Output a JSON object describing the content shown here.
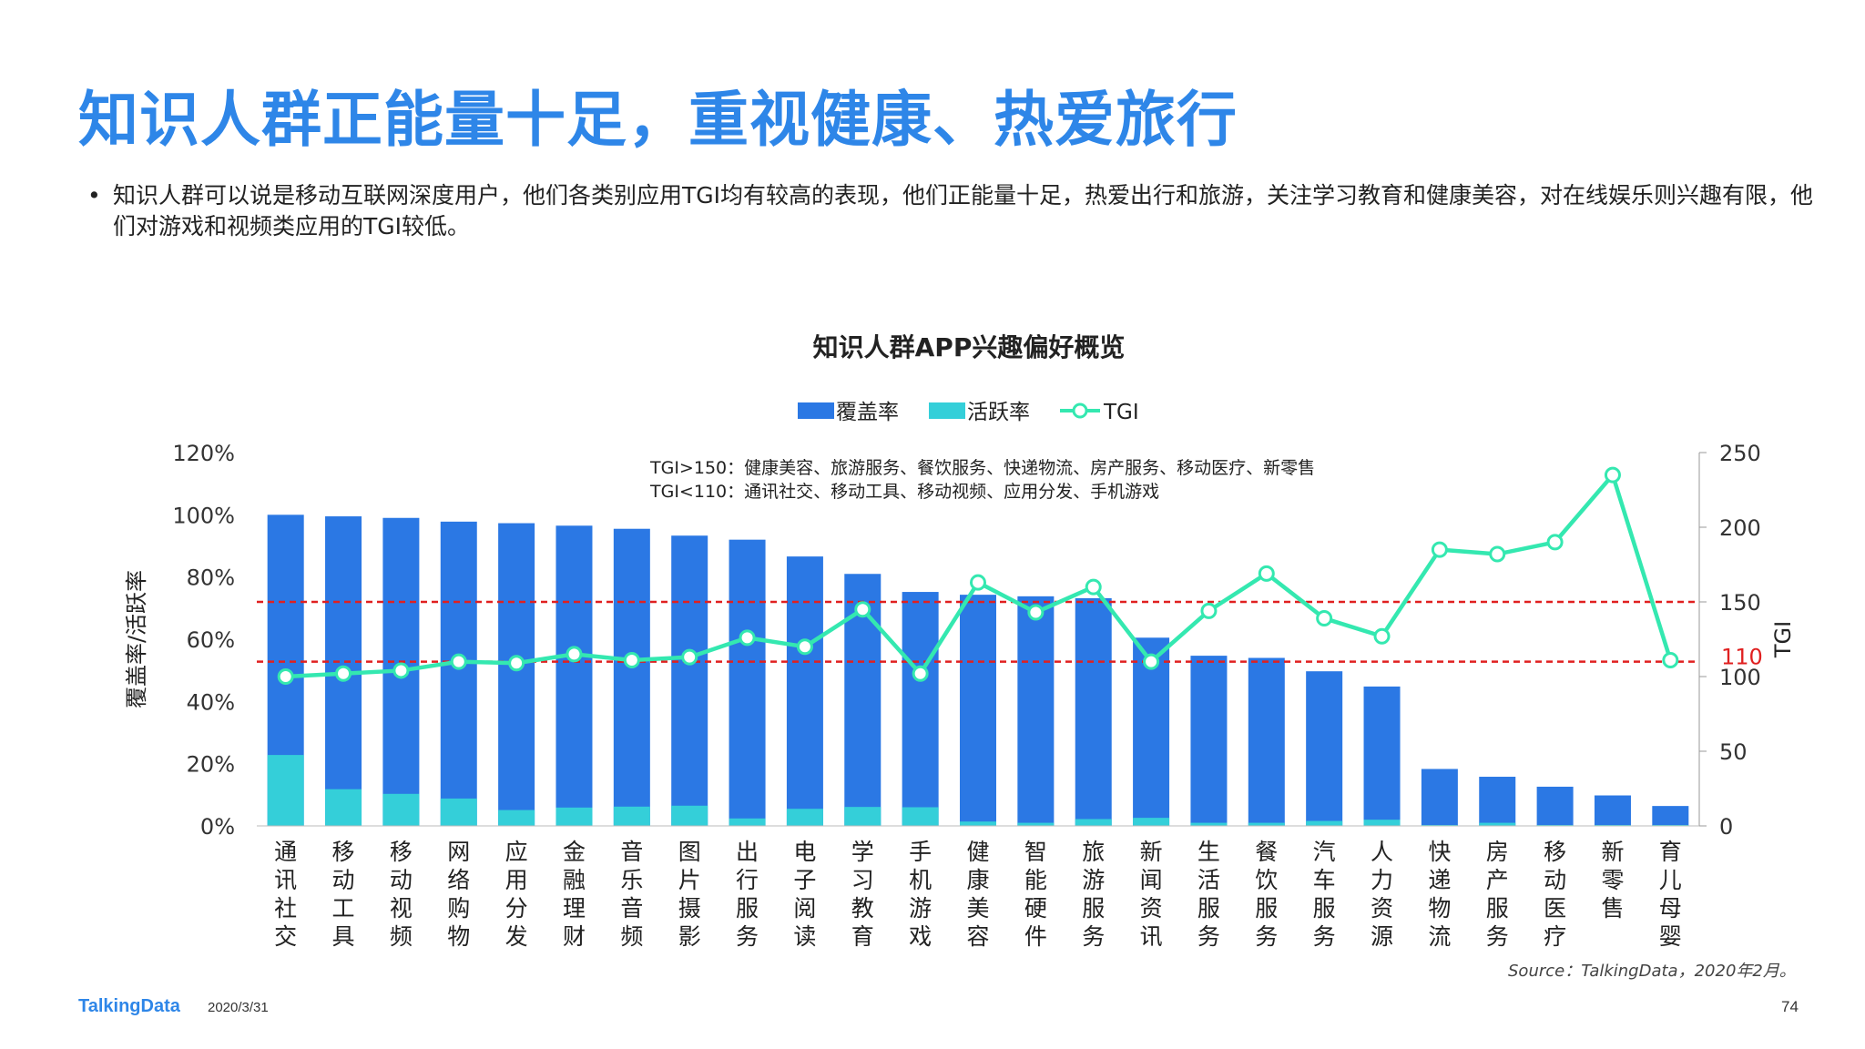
{
  "page": {
    "title": "知识人群正能量十足，重视健康、热爱旅行",
    "bullet": "•",
    "summary": "知识人群可以说是移动互联网深度用户，他们各类别应用TGI均有较高的表现，他们正能量十足，热爱出行和旅游，关注学习教育和健康美容，对在线娱乐则兴趣有限，他们对游戏和视频类应用的TGI较低。",
    "source": "Source：TalkingData，2020年2月。",
    "logo": "TalkingData",
    "date": "2020/3/31",
    "page_number": "74"
  },
  "chart_data": {
    "type": "bar",
    "title": "知识人群APP兴趣偏好概览",
    "ylabel": "覆盖率/活跃率",
    "y2label": "TGI",
    "ylim": [
      0,
      120
    ],
    "y_ticks": [
      "0%",
      "20%",
      "40%",
      "60%",
      "80%",
      "100%",
      "120%"
    ],
    "y2lim": [
      0,
      250
    ],
    "y2_ticks": [
      "0",
      "50",
      "100",
      "150",
      "200",
      "250"
    ],
    "legend_position": "top-center",
    "grid": false,
    "categories": [
      "通讯社交",
      "移动工具",
      "移动视频",
      "网络购物",
      "应用分发",
      "金融理财",
      "音乐音频",
      "图片摄影",
      "出行服务",
      "电子阅读",
      "学习教育",
      "手机游戏",
      "健康美容",
      "智能硬件",
      "旅游服务",
      "新闻资讯",
      "生活服务",
      "餐饮服务",
      "汽车服务",
      "人力资源",
      "快递物流",
      "房产服务",
      "移动医疗",
      "新零售",
      "育儿母婴"
    ],
    "series": [
      {
        "name": "覆盖率",
        "kind": "bar",
        "color": "#2b78e4",
        "values": [
          100,
          99.5,
          99,
          97.8,
          97.3,
          96.5,
          95.5,
          93.3,
          92,
          86.6,
          81,
          75.2,
          74.3,
          73.8,
          73.2,
          60.5,
          54.7,
          54,
          49.7,
          44.8,
          18.3,
          15.8,
          12.6,
          9.8,
          6.4
        ]
      },
      {
        "name": "活跃率",
        "kind": "bar",
        "color": "#34cfd9",
        "values": [
          22.8,
          11.8,
          10.3,
          8.8,
          5.1,
          5.9,
          6.2,
          6.5,
          2.4,
          5.5,
          6.1,
          6,
          1.4,
          1,
          2.2,
          2.6,
          1,
          1,
          1.6,
          2,
          0.3,
          1,
          0.3,
          0.3,
          0.3
        ]
      },
      {
        "name": "TGI",
        "kind": "line",
        "color": "#34e8b0",
        "axis": "right",
        "values": [
          100,
          102,
          104,
          110,
          109,
          115,
          111,
          113,
          126,
          120,
          145,
          102,
          163,
          143,
          160,
          110,
          144,
          169,
          139,
          127,
          185,
          182,
          190,
          235,
          111
        ]
      }
    ],
    "reference_lines": [
      {
        "axis": "right",
        "value": 150,
        "label": "",
        "color": "#e02020"
      },
      {
        "axis": "right",
        "value": 110,
        "label": "110",
        "color": "#e02020"
      }
    ],
    "annotations": [
      "TGI>150：健康美容、旅游服务、餐饮服务、快递物流、房产服务、移动医疗、新零售",
      "TGI<110：通讯社交、移动工具、移动视频、应用分发、手机游戏"
    ]
  }
}
